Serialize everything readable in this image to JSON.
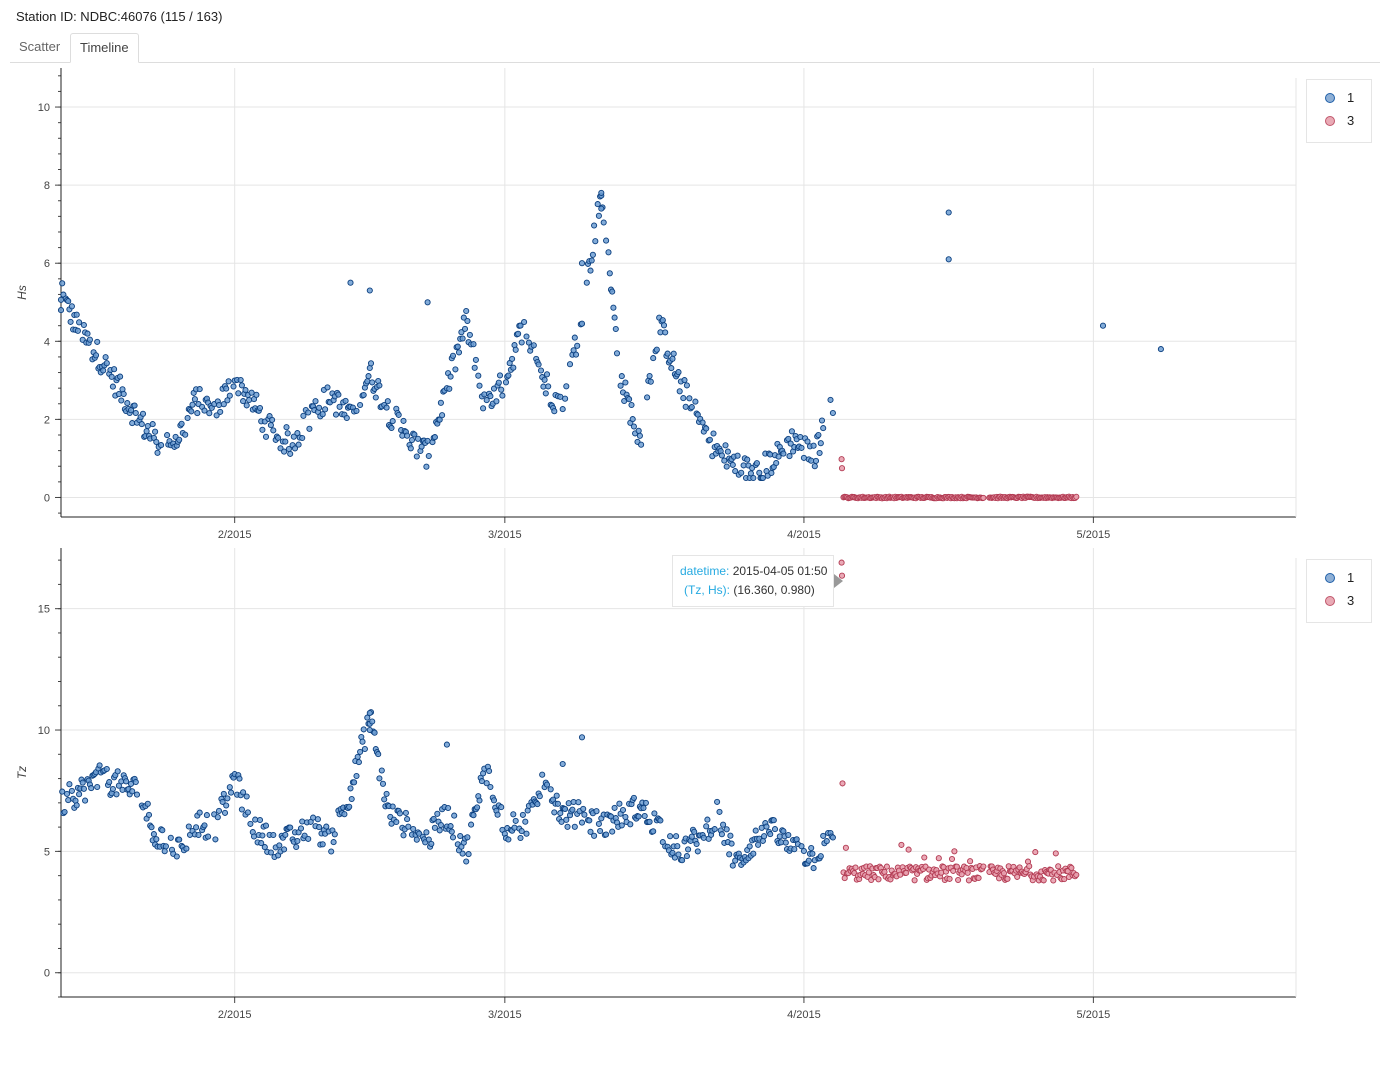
{
  "header": {
    "station": "Station ID: NDBC:46076 (115 / 163)"
  },
  "tabs": [
    {
      "label": "Scatter",
      "active": false
    },
    {
      "label": "Timeline",
      "active": true
    }
  ],
  "colors": {
    "series_1": "#1f5fa8",
    "series_3": "#c0566b",
    "grid": "#e5e5e5",
    "tooltip_key": "#26aae1"
  },
  "tooltip": {
    "row1_key": "datetime:",
    "row1_val": "2015-04-05 01:50",
    "row2_key": "(Tz, Hs):",
    "row2_val": "(16.360, 0.980)"
  },
  "chart_data": [
    {
      "type": "scatter",
      "ylabel": "Hs",
      "ylim": [
        -0.5,
        11
      ],
      "yticks": [
        "0",
        "2",
        "4",
        "6",
        "8",
        "10"
      ],
      "xlim": [
        "2015-01-14",
        "2015-05-22"
      ],
      "xticks": [
        "2/2015",
        "3/2015",
        "4/2015",
        "5/2015"
      ],
      "grid": true,
      "legend": {
        "position": "right",
        "entries": [
          "1",
          "3"
        ]
      },
      "series": [
        {
          "name": "1",
          "x_range": [
            "2015-01-14",
            "2015-04-05"
          ],
          "keypoints": [
            [
              0,
              5.2
            ],
            [
              2,
              4.2
            ],
            [
              4,
              3.6
            ],
            [
              6,
              2.8
            ],
            [
              8,
              2.0
            ],
            [
              10,
              1.4
            ],
            [
              12,
              1.5
            ],
            [
              14,
              2.5
            ],
            [
              16,
              2.2
            ],
            [
              18,
              3.0
            ],
            [
              20,
              2.4
            ],
            [
              22,
              1.6
            ],
            [
              24,
              1.4
            ],
            [
              26,
              2.2
            ],
            [
              28,
              2.6
            ],
            [
              30,
              2.0
            ],
            [
              32,
              3.2
            ],
            [
              34,
              2.2
            ],
            [
              36,
              1.5
            ],
            [
              38,
              1.1
            ],
            [
              40,
              2.8
            ],
            [
              42,
              4.5
            ],
            [
              44,
              2.2
            ],
            [
              46,
              3.0
            ],
            [
              48,
              4.5
            ],
            [
              50,
              3.0
            ],
            [
              52,
              2.2
            ],
            [
              54,
              4.8
            ],
            [
              56,
              7.8
            ],
            [
              58,
              3.0
            ],
            [
              60,
              1.5
            ],
            [
              62,
              4.5
            ],
            [
              64,
              3.0
            ],
            [
              66,
              2.0
            ],
            [
              68,
              1.2
            ],
            [
              70,
              0.8
            ],
            [
              72,
              0.6
            ],
            [
              74,
              1.0
            ],
            [
              76,
              1.5
            ],
            [
              78,
              1.0
            ],
            [
              80,
              2.5
            ],
            [
              82,
              1.5
            ],
            [
              84,
              0.9
            ],
            [
              86,
              1.0
            ],
            [
              88,
              2.0
            ],
            [
              90,
              1.8
            ],
            [
              92,
              5.5
            ],
            [
              94,
              3.0
            ],
            [
              96,
              3.0
            ],
            [
              98,
              1.5
            ],
            [
              100,
              1.0
            ],
            [
              102,
              1.2
            ],
            [
              104,
              3.5
            ],
            [
              106,
              2.5
            ],
            [
              108,
              4.0
            ],
            [
              110,
              3.0
            ],
            [
              112,
              1.5
            ],
            [
              114,
              2.0
            ],
            [
              116,
              1.6
            ],
            [
              118,
              1.1
            ]
          ],
          "spikes": [
            [
              56,
              7.8
            ],
            [
              56,
              7.4
            ],
            [
              54,
              6.0
            ],
            [
              92,
              7.3
            ],
            [
              92,
              6.1
            ],
            [
              30,
              5.5
            ],
            [
              32,
              5.3
            ],
            [
              38,
              5.0
            ],
            [
              0,
              4.8
            ],
            [
              108,
              4.4
            ],
            [
              114,
              3.8
            ]
          ]
        },
        {
          "name": "3",
          "x_range": [
            "2015-04-05",
            "2015-04-30"
          ],
          "value": 0.0,
          "start_points": [
            0.98,
            0.75
          ]
        }
      ]
    },
    {
      "type": "scatter",
      "ylabel": "Tz",
      "ylim": [
        -1.0,
        17.5
      ],
      "yticks": [
        "0",
        "5",
        "10",
        "15"
      ],
      "xlim": [
        "2015-01-14",
        "2015-05-22"
      ],
      "xticks": [
        "2/2015",
        "3/2015",
        "4/2015",
        "5/2015"
      ],
      "grid": true,
      "legend": {
        "position": "right",
        "entries": [
          "1",
          "3"
        ]
      },
      "series": [
        {
          "name": "1",
          "x_range": [
            "2015-01-14",
            "2015-04-05"
          ],
          "keypoints": [
            [
              0,
              7.0
            ],
            [
              4,
              8.0
            ],
            [
              8,
              7.5
            ],
            [
              10,
              5.5
            ],
            [
              12,
              5.0
            ],
            [
              14,
              6.2
            ],
            [
              16,
              6.0
            ],
            [
              18,
              8.0
            ],
            [
              20,
              6.0
            ],
            [
              22,
              5.3
            ],
            [
              24,
              5.5
            ],
            [
              26,
              6.0
            ],
            [
              28,
              5.5
            ],
            [
              30,
              7.5
            ],
            [
              32,
              10.5
            ],
            [
              34,
              6.5
            ],
            [
              36,
              6.0
            ],
            [
              38,
              5.5
            ],
            [
              40,
              6.5
            ],
            [
              42,
              5.0
            ],
            [
              44,
              8.5
            ],
            [
              46,
              6.0
            ],
            [
              48,
              6.0
            ],
            [
              50,
              8.0
            ],
            [
              52,
              6.5
            ],
            [
              54,
              6.5
            ],
            [
              56,
              6.0
            ],
            [
              58,
              6.5
            ],
            [
              60,
              6.8
            ],
            [
              62,
              6.0
            ],
            [
              64,
              5.0
            ],
            [
              66,
              5.5
            ],
            [
              68,
              6.5
            ],
            [
              70,
              4.5
            ],
            [
              72,
              5.5
            ],
            [
              74,
              5.8
            ],
            [
              76,
              5.0
            ],
            [
              78,
              4.8
            ],
            [
              80,
              5.5
            ],
            [
              82,
              6.0
            ],
            [
              84,
              5.0
            ],
            [
              86,
              5.5
            ],
            [
              88,
              6.5
            ],
            [
              90,
              6.0
            ],
            [
              92,
              8.0
            ],
            [
              94,
              6.5
            ],
            [
              96,
              6.5
            ],
            [
              98,
              7.0
            ],
            [
              100,
              5.5
            ],
            [
              102,
              5.0
            ],
            [
              104,
              8.0
            ],
            [
              106,
              6.5
            ],
            [
              108,
              6.8
            ],
            [
              110,
              7.0
            ],
            [
              112,
              6.5
            ],
            [
              114,
              6.0
            ],
            [
              116,
              5.5
            ],
            [
              118,
              5.0
            ]
          ],
          "spikes": [
            [
              32,
              10.7
            ],
            [
              32,
              10.0
            ],
            [
              40,
              9.4
            ],
            [
              54,
              9.7
            ],
            [
              52,
              8.6
            ]
          ]
        },
        {
          "name": "3",
          "x_range": [
            "2015-04-05",
            "2015-04-30"
          ],
          "value": 4.1,
          "start_points": [
            16.9,
            16.36,
            7.8
          ]
        }
      ]
    }
  ]
}
